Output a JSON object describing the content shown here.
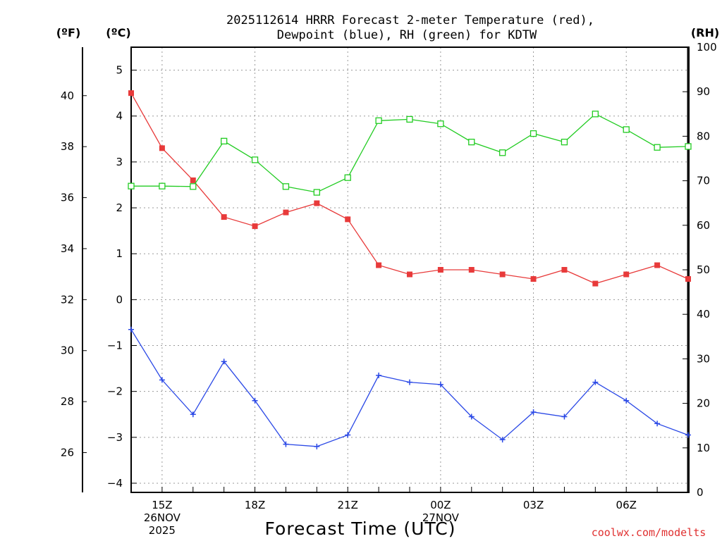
{
  "chart_data": {
    "type": "line",
    "title": [
      "2025112614 HRRR Forecast 2-meter Temperature (red),",
      "Dewpoint (blue), RH (green) for KDTW"
    ],
    "xlabel": "Forecast Time (UTC)",
    "credit": "coolwx.com/modelts",
    "units": {
      "fahrenheit": "(ºF)",
      "celsius": "(ºC)",
      "rh": "(RH)"
    },
    "x_hours": [
      0,
      1,
      2,
      3,
      4,
      5,
      6,
      7,
      8,
      9,
      10,
      11,
      12,
      13,
      14,
      15,
      16,
      17,
      18
    ],
    "x_tick_labels": [
      {
        "hour": 1,
        "lines": [
          "15Z",
          "26NOV",
          "2025"
        ]
      },
      {
        "hour": 4,
        "lines": [
          "18Z"
        ]
      },
      {
        "hour": 7,
        "lines": [
          "21Z"
        ]
      },
      {
        "hour": 10,
        "lines": [
          "00Z",
          "27NOV"
        ]
      },
      {
        "hour": 13,
        "lines": [
          "03Z"
        ]
      },
      {
        "hour": 16,
        "lines": [
          "06Z"
        ]
      }
    ],
    "celsius_axis": {
      "range": [
        -4.2,
        5.5
      ],
      "ticks": [
        -4,
        -3,
        -2,
        -1,
        0,
        1,
        2,
        3,
        4,
        5
      ]
    },
    "fahrenheit_ticks": [
      26,
      28,
      30,
      32,
      34,
      36,
      38,
      40
    ],
    "rh_axis": {
      "range": [
        0,
        100
      ],
      "ticks": [
        0,
        10,
        20,
        30,
        40,
        50,
        60,
        70,
        80,
        90,
        100
      ]
    },
    "series": [
      {
        "name": "Temperature",
        "axis": "celsius",
        "color": "#e83a3a",
        "marker": "filled-square",
        "values": [
          4.5,
          3.3,
          2.6,
          1.8,
          1.6,
          1.9,
          2.1,
          1.75,
          0.75,
          0.55,
          0.65,
          0.65,
          0.55,
          0.45,
          0.65,
          0.35,
          0.55,
          0.75,
          0.45
        ]
      },
      {
        "name": "Dewpoint",
        "axis": "celsius",
        "color": "#2a48e6",
        "marker": "plus",
        "values": [
          -0.65,
          -1.75,
          -2.5,
          -1.35,
          -2.2,
          -3.15,
          -3.2,
          -2.95,
          -1.65,
          -1.8,
          -1.85,
          -2.55,
          -3.05,
          -2.45,
          -2.55,
          -1.8,
          -2.2,
          -2.7,
          -2.95
        ]
      },
      {
        "name": "RH",
        "axis": "rh",
        "color": "#22cc22",
        "marker": "open-square",
        "values": [
          68.8,
          68.8,
          68.7,
          78.9,
          74.7,
          68.7,
          67.4,
          70.7,
          83.5,
          83.8,
          82.8,
          78.7,
          76.3,
          80.6,
          78.7,
          85.0,
          81.5,
          77.5,
          77.7
        ]
      }
    ]
  }
}
